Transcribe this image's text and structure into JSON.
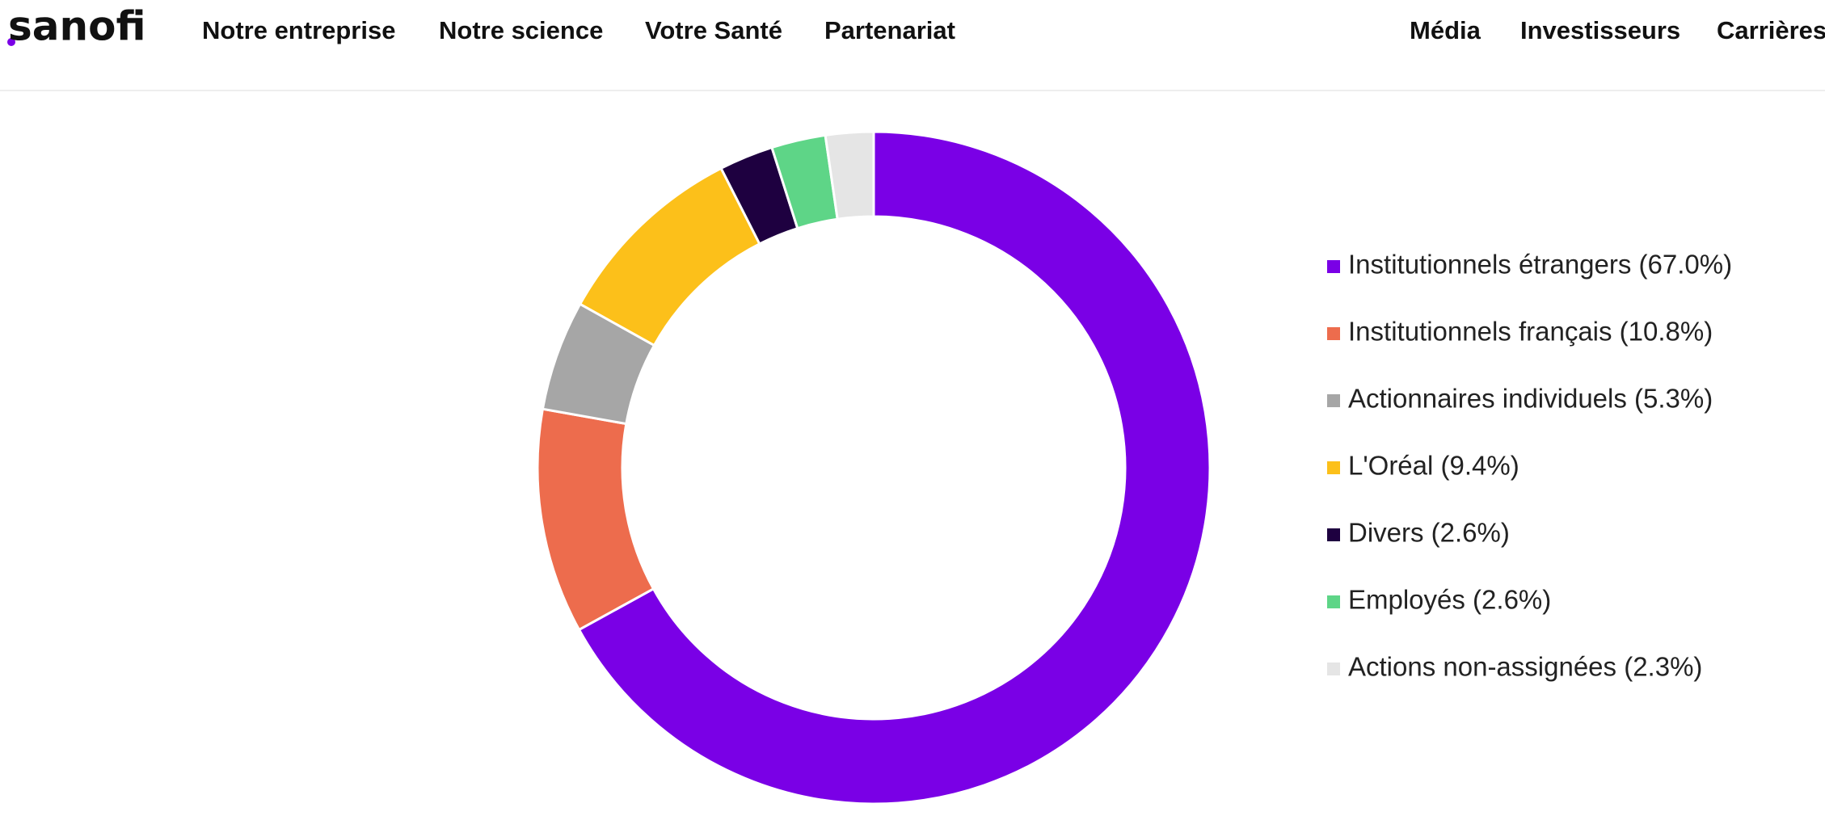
{
  "nav": {
    "logo": "sanofi",
    "left": [
      "Notre entreprise",
      "Notre science",
      "Votre Santé",
      "Partenariat"
    ],
    "right": [
      "Média",
      "Investisseurs",
      "Carrières"
    ]
  },
  "chart_data": {
    "type": "donut",
    "categories": [
      "Institutionnels étrangers (67.0%)",
      "Institutionnels français (10.8%)",
      "Actionnaires individuels (5.3%)",
      "L'Oréal (9.4%)",
      "Divers (2.6%)",
      "Employés (2.6%)",
      "Actions non-assignées (2.3%)"
    ],
    "values": [
      67.0,
      10.8,
      5.3,
      9.4,
      2.6,
      2.6,
      2.3
    ],
    "colors": [
      "#7a00e6",
      "#ed6c4d",
      "#a6a6a6",
      "#fcc01a",
      "#1e0040",
      "#5ed587",
      "#e5e5e5"
    ]
  }
}
